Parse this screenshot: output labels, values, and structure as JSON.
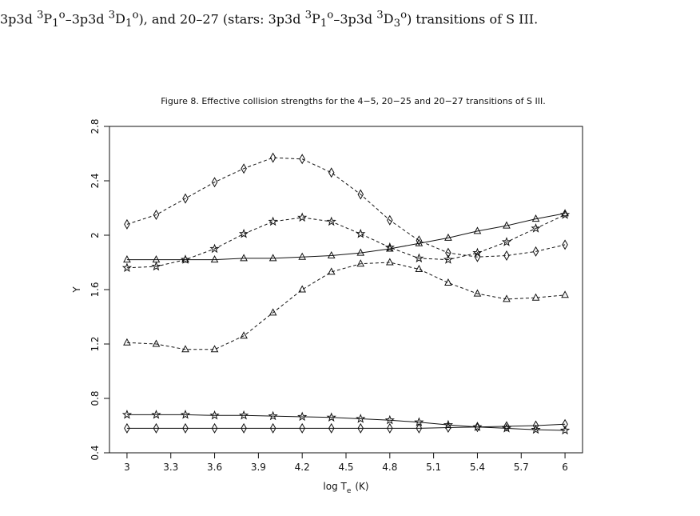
{
  "caption": {
    "lead": "3p3d",
    "sup_3a": "3",
    "term_a": "P",
    "sub_a": "1",
    "sup_oa": "o",
    "dash": "–3p3d",
    "sup_3b": "3",
    "term_b": "D",
    "sub_b": "1",
    "sup_ob": "o",
    "mid": "), and 20–27 (stars: 3p3d",
    "sup_3c": "3",
    "term_c": "P",
    "sub_c": "1",
    "sup_oc": "o",
    "dash2": "–3p3d",
    "sup_3d": "3",
    "term_d": "D",
    "sub_d": "3",
    "sup_od": "o",
    "tail": ") transitions of S III."
  },
  "chart_data": {
    "type": "line",
    "title": "Figure 8. Effective collision strengths for the 4−5, 20−25 and 20−27 transitions of S III.",
    "xlabel_main": "log T",
    "xlabel_sub": "e",
    "xlabel_unit": "(K)",
    "ylabel": "Υ",
    "xlim": [
      2.88,
      6.12
    ],
    "ylim": [
      0.4,
      2.8
    ],
    "xticks": [
      "3",
      "3.3",
      "3.6",
      "3.9",
      "4.2",
      "4.5",
      "4.8",
      "5.1",
      "5.4",
      "5.7",
      "6"
    ],
    "yticks": [
      "0.4",
      "0.8",
      "1.2",
      "1.6",
      "2",
      "2.4",
      "2.8"
    ],
    "grid": false,
    "x": [
      3.0,
      3.2,
      3.4,
      3.6,
      3.8,
      4.0,
      4.2,
      4.4,
      4.6,
      4.8,
      5.0,
      5.2,
      5.4,
      5.6,
      5.8,
      6.0
    ],
    "series": [
      {
        "marker": "diamond",
        "dash": true,
        "values": [
          2.08,
          2.15,
          2.27,
          2.39,
          2.49,
          2.57,
          2.56,
          2.46,
          2.3,
          2.11,
          1.96,
          1.87,
          1.84,
          1.85,
          1.88,
          1.93
        ]
      },
      {
        "marker": "star",
        "dash": true,
        "values": [
          1.76,
          1.77,
          1.82,
          1.9,
          2.01,
          2.1,
          2.13,
          2.1,
          2.01,
          1.91,
          1.83,
          1.82,
          1.87,
          1.95,
          2.05,
          2.15
        ]
      },
      {
        "marker": "triangle",
        "dash": false,
        "values": [
          1.82,
          1.82,
          1.82,
          1.82,
          1.83,
          1.83,
          1.84,
          1.85,
          1.87,
          1.9,
          1.94,
          1.98,
          2.03,
          2.07,
          2.12,
          2.16
        ]
      },
      {
        "marker": "triangle",
        "dash": true,
        "values": [
          1.21,
          1.2,
          1.16,
          1.16,
          1.26,
          1.43,
          1.6,
          1.73,
          1.79,
          1.8,
          1.75,
          1.65,
          1.57,
          1.53,
          1.54,
          1.56
        ]
      },
      {
        "marker": "star",
        "dash": false,
        "values": [
          0.68,
          0.68,
          0.68,
          0.675,
          0.675,
          0.67,
          0.665,
          0.66,
          0.65,
          0.64,
          0.625,
          0.605,
          0.59,
          0.58,
          0.57,
          0.565
        ]
      },
      {
        "marker": "diamond",
        "dash": false,
        "values": [
          0.58,
          0.58,
          0.58,
          0.58,
          0.58,
          0.58,
          0.58,
          0.58,
          0.58,
          0.58,
          0.58,
          0.585,
          0.59,
          0.595,
          0.6,
          0.61
        ]
      }
    ]
  }
}
